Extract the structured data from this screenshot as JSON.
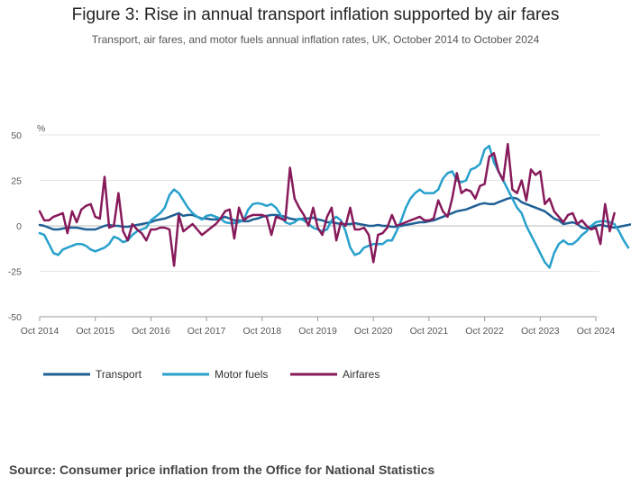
{
  "title": "Figure 3: Rise in annual transport inflation supported by air fares",
  "subtitle": "Transport, air fares, and motor fuels annual inflation rates, UK, October 2014 to October 2024",
  "source": "Source: Consumer price inflation from the Office for National Statistics",
  "colors": {
    "Transport": "#206095",
    "Motor fuels": "#27A0CC",
    "Airfares": "#871A5B",
    "grid": "#e6e6e6",
    "axis": "#999999"
  },
  "chart_data": {
    "type": "line",
    "ylabel": "%",
    "ylim": [
      -50,
      50
    ],
    "yticks": [
      50,
      25,
      0,
      -25,
      -50
    ],
    "xticks": [
      "Oct 2014",
      "Oct 2015",
      "Oct 2016",
      "Oct 2017",
      "Oct 2018",
      "Oct 2019",
      "Oct 2020",
      "Oct 2021",
      "Oct 2022",
      "Oct 2023",
      "Oct 2024"
    ],
    "x_start": "Oct 2014",
    "x_end": "Oct 2024",
    "legend_position": "bottom-left",
    "series": [
      {
        "name": "Transport",
        "values": [
          0.5,
          0,
          -1,
          -2,
          -2,
          -1.5,
          -1,
          -1,
          -1,
          -1.5,
          -2,
          -2,
          -2,
          -1,
          0,
          0.5,
          0,
          0,
          -0.5,
          -0.5,
          0,
          0.5,
          1,
          1.5,
          2,
          3,
          3.5,
          4,
          5,
          6,
          7,
          5.5,
          6,
          6,
          5,
          4,
          4,
          3.5,
          3.5,
          4,
          5,
          4,
          3,
          3,
          2.5,
          2.5,
          3.5,
          4,
          5,
          5.5,
          6,
          6,
          5.5,
          5,
          4,
          3.5,
          3.5,
          4,
          4,
          4.5,
          3.5,
          3,
          2,
          2,
          1.5,
          1,
          1,
          1,
          1.5,
          1,
          0.5,
          0,
          0,
          0.5,
          0,
          0,
          -0.5,
          -0.5,
          0,
          0.5,
          1,
          1.5,
          2,
          2,
          2.5,
          3,
          4,
          5,
          6,
          7,
          8,
          8.5,
          9,
          10,
          11,
          12,
          12.5,
          12,
          12,
          13,
          14,
          15,
          15.5,
          15,
          13,
          12,
          11,
          10,
          9,
          8,
          6,
          4,
          3,
          1,
          1.5,
          2,
          1,
          -1,
          -1.5,
          -1,
          0,
          0.5,
          0,
          -0.5,
          -1,
          -0.5,
          0,
          0.5,
          1,
          1.5,
          1,
          0.5,
          0,
          -0.5,
          -1,
          -1.5
        ]
      },
      {
        "name": "Motor fuels",
        "values": [
          -4,
          -5,
          -10,
          -15,
          -16,
          -13,
          -12,
          -11,
          -10,
          -10,
          -11,
          -13,
          -14,
          -13,
          -12,
          -10,
          -6,
          -7,
          -9,
          -8,
          -5,
          -3,
          -2,
          -1,
          3,
          5,
          7,
          10,
          17,
          20,
          18,
          14,
          10,
          7,
          5,
          3.5,
          5.5,
          6,
          5,
          4,
          2,
          1.5,
          1.5,
          2,
          3,
          9,
          12,
          12.5,
          12,
          11,
          12,
          10,
          6,
          2,
          1,
          2,
          4,
          3,
          1,
          -1,
          -2,
          -3,
          -2,
          3,
          5,
          3,
          -3,
          -12,
          -16,
          -15,
          -12,
          -11,
          -10,
          -10,
          -10,
          -8,
          -8,
          -3,
          3,
          10,
          15,
          18,
          20,
          18,
          18,
          18,
          20,
          26,
          29,
          30,
          25,
          24,
          25,
          31,
          32,
          34,
          42,
          44,
          35,
          30,
          25,
          20,
          15,
          10,
          7,
          0,
          -5,
          -10,
          -15,
          -20,
          -23,
          -15,
          -10,
          -8,
          -10,
          -10,
          -8,
          -5,
          -3,
          0,
          2,
          2.5,
          2.5,
          2,
          1,
          -3,
          -8,
          -12
        ]
      },
      {
        "name": "Airfares",
        "values": [
          8,
          3,
          3,
          5,
          6,
          7,
          -4,
          8,
          2,
          9,
          11,
          12,
          5,
          4,
          27,
          -1,
          0,
          18,
          -3,
          -8,
          1,
          -2,
          -4,
          -8,
          -2,
          -2,
          -1,
          -1,
          -2,
          -22,
          6,
          -3,
          -1,
          1,
          -2,
          -5,
          -3,
          -1,
          1,
          4,
          8,
          9,
          -7,
          10,
          3,
          5,
          6,
          6,
          6,
          5,
          -5,
          5,
          4,
          3,
          32,
          15,
          10,
          6,
          0,
          10,
          -1,
          -5,
          5,
          10,
          -8,
          2,
          0,
          10,
          -2,
          -2,
          -1,
          -5,
          -20,
          -5,
          -4,
          -1,
          6,
          0,
          1,
          2,
          3,
          4,
          5,
          3,
          3,
          4,
          14,
          8,
          5,
          15,
          29,
          18,
          20,
          19,
          15,
          22,
          23,
          38,
          40,
          30,
          25,
          45,
          20,
          18,
          25,
          14,
          31,
          28,
          30,
          12,
          15,
          8,
          5,
          2,
          6,
          7,
          1,
          3,
          0,
          -2,
          -1,
          -10,
          12,
          -3,
          7
        ]
      }
    ]
  }
}
